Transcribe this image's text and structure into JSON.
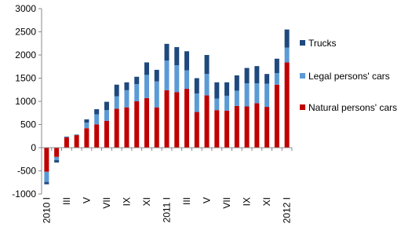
{
  "chart_data": {
    "type": "stacked-bar",
    "categories": [
      "2010 I",
      null,
      "III",
      null,
      "V",
      null,
      "VII",
      null,
      "IX",
      null,
      "XI",
      null,
      "2011 I",
      null,
      "III",
      null,
      "V",
      null,
      "VII",
      null,
      "IX",
      null,
      "XI",
      null,
      "2012 I"
    ],
    "series": [
      {
        "name": "Natural persons' cars",
        "color": "#c00000",
        "values": [
          -520,
          -200,
          220,
          270,
          420,
          500,
          580,
          840,
          870,
          1000,
          1070,
          870,
          1240,
          1200,
          1270,
          770,
          1130,
          810,
          800,
          900,
          890,
          960,
          880,
          1360,
          1840
        ]
      },
      {
        "name": "Legal persons' cars",
        "color": "#5b9bd5",
        "values": [
          -220,
          -70,
          10,
          10,
          120,
          220,
          230,
          270,
          370,
          370,
          500,
          560,
          640,
          580,
          400,
          400,
          460,
          250,
          320,
          330,
          500,
          430,
          500,
          250,
          320
        ]
      },
      {
        "name": "Trucks",
        "color": "#1f497d",
        "values": [
          -50,
          -50,
          10,
          5,
          70,
          110,
          180,
          250,
          170,
          160,
          270,
          250,
          360,
          390,
          410,
          330,
          410,
          350,
          290,
          330,
          330,
          370,
          210,
          310,
          390
        ]
      }
    ],
    "ylim": [
      -1000,
      3000
    ],
    "yticks": [
      -1000,
      -500,
      0,
      500,
      1000,
      1500,
      2000,
      2500,
      3000
    ]
  }
}
